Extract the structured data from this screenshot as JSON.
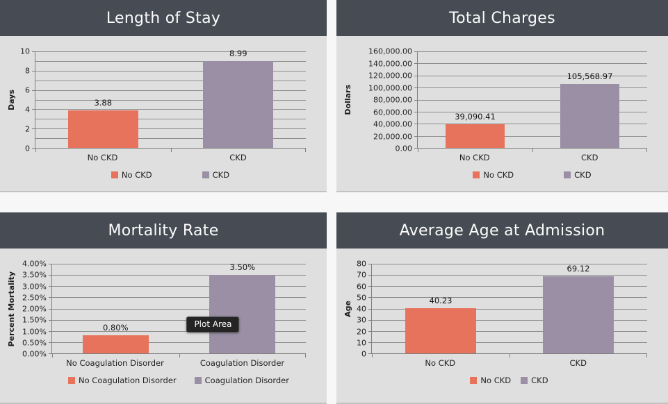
{
  "colors": {
    "page_background": "#f7f7f8",
    "panel_background": "#dfdfdf",
    "header_background": "#474c54",
    "header_text": "#fbfbfb",
    "series1": "#e8735c",
    "series2": "#9a8fa5",
    "gridline": "#8d8d8d",
    "axis": "#7f7f7f",
    "tooltip_background": "#242424",
    "tooltip_text": "#ffffff"
  },
  "chart_data": [
    {
      "type": "bar",
      "title": "Length of Stay",
      "ylabel": "Days",
      "xlabel": "",
      "categories": [
        "No CKD",
        "CKD"
      ],
      "values": [
        3.88,
        8.99
      ],
      "value_labels": [
        "3.88",
        "8.99"
      ],
      "ylim": [
        0,
        10
      ],
      "y_tick_labels": [
        "10",
        "8",
        "6",
        "4",
        "2",
        "0"
      ],
      "gridline_intervals": 10,
      "grid": true,
      "legend": [
        "No CKD",
        "CKD"
      ],
      "legend_position": "bottom",
      "series_colors": [
        "#e8735c",
        "#9a8fa5"
      ]
    },
    {
      "type": "bar",
      "title": "Total Charges",
      "ylabel": "Dollars",
      "xlabel": "",
      "categories": [
        "No CKD",
        "CKD"
      ],
      "values": [
        39090.41,
        105568.97
      ],
      "value_labels": [
        "39,090.41",
        "105,568.97"
      ],
      "ylim": [
        0,
        160000
      ],
      "y_tick_labels": [
        "160,000.00",
        "140,000.00",
        "120,000.00",
        "100,000.00",
        "80,000.00",
        "60,000.00",
        "40,000.00",
        "20,000.00",
        "0.00"
      ],
      "gridline_intervals": 8,
      "grid": true,
      "legend": [
        "No CKD",
        "CKD"
      ],
      "legend_position": "bottom",
      "series_colors": [
        "#e8735c",
        "#9a8fa5"
      ]
    },
    {
      "type": "bar",
      "title": "Mortality Rate",
      "ylabel": "Percent Mortality",
      "xlabel": "",
      "categories": [
        "No Coagulation Disorder",
        "Coagulation Disorder"
      ],
      "values": [
        0.8,
        3.5
      ],
      "value_labels": [
        "0.80%",
        "3.50%"
      ],
      "ylim": [
        0,
        4
      ],
      "y_tick_labels": [
        "4.00%",
        "3.50%",
        "3.00%",
        "2.50%",
        "2.00%",
        "1.50%",
        "1.00%",
        "0.50%",
        "0.00%"
      ],
      "gridline_intervals": 8,
      "grid": true,
      "legend": [
        "No Coagulation Disorder",
        "Coagulation Disorder"
      ],
      "legend_position": "bottom",
      "annotation": "Plot Area",
      "series_colors": [
        "#e8735c",
        "#9a8fa5"
      ]
    },
    {
      "type": "bar",
      "title": "Average Age at Admission",
      "ylabel": "Age",
      "xlabel": "",
      "categories": [
        "No CKD",
        "CKD"
      ],
      "values": [
        40.23,
        69.12
      ],
      "value_labels": [
        "40.23",
        "69.12"
      ],
      "ylim": [
        0,
        80
      ],
      "y_tick_labels": [
        "80",
        "70",
        "60",
        "50",
        "40",
        "30",
        "20",
        "10",
        "0"
      ],
      "gridline_intervals": 8,
      "grid": true,
      "legend": [
        "No CKD",
        "CKD"
      ],
      "legend_position": "bottom",
      "series_colors": [
        "#e8735c",
        "#9a8fa5"
      ]
    }
  ]
}
